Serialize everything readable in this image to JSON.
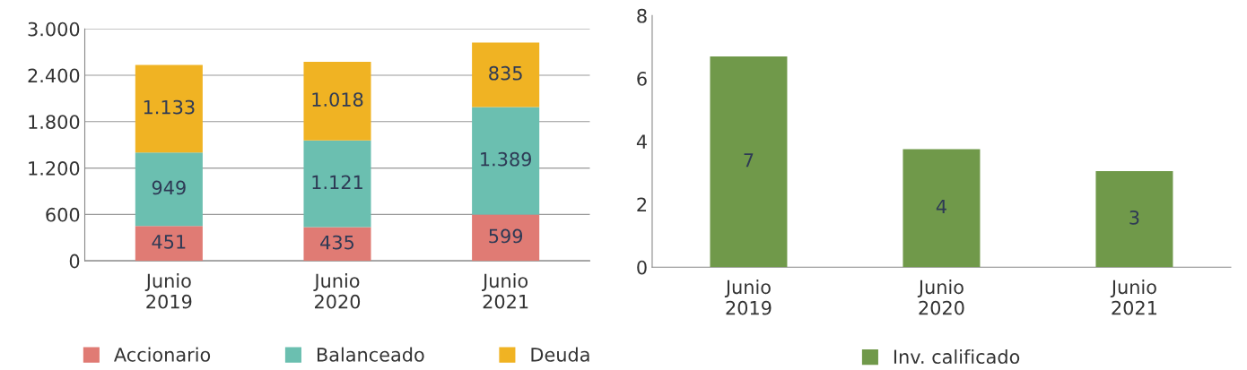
{
  "chart_data": [
    {
      "type": "bar",
      "stacked": true,
      "categories": [
        "Junio\n2019",
        "Junio\n2020",
        "Junio\n2021"
      ],
      "series": [
        {
          "name": "Accionario",
          "color": "#e07b74",
          "values": [
            451,
            435,
            599
          ],
          "value_labels": [
            "451",
            "435",
            "599"
          ]
        },
        {
          "name": "Balanceado",
          "color": "#6bbfb0",
          "values": [
            949,
            1121,
            1389
          ],
          "value_labels": [
            "949",
            "1.121",
            "1.389"
          ]
        },
        {
          "name": "Deuda",
          "color": "#f0b323",
          "values": [
            1133,
            1018,
            835
          ],
          "value_labels": [
            "1.133",
            "1.018",
            "835"
          ]
        }
      ],
      "ylim": [
        0,
        3000
      ],
      "yticks": [
        0,
        600,
        {
          "value": 1200,
          "label": "1.200"
        },
        {
          "value": 1800,
          "label": "1.800"
        },
        {
          "value": 2400,
          "label": "2.400"
        },
        {
          "value": 3000,
          "label": "3.000"
        }
      ],
      "grid": "y",
      "legend": "bottom"
    },
    {
      "type": "bar",
      "categories": [
        "Junio\n2019",
        "Junio\n2020",
        "Junio\n2021"
      ],
      "series": [
        {
          "name": "Inv. calificado",
          "color": "#70994a",
          "values": [
            6.7,
            3.75,
            3.05
          ],
          "value_labels": [
            "7",
            "4",
            "3"
          ]
        }
      ],
      "ylim": [
        0,
        8
      ],
      "yticks": [
        0,
        2,
        4,
        6,
        8
      ],
      "grid": false,
      "legend": "bottom"
    }
  ]
}
